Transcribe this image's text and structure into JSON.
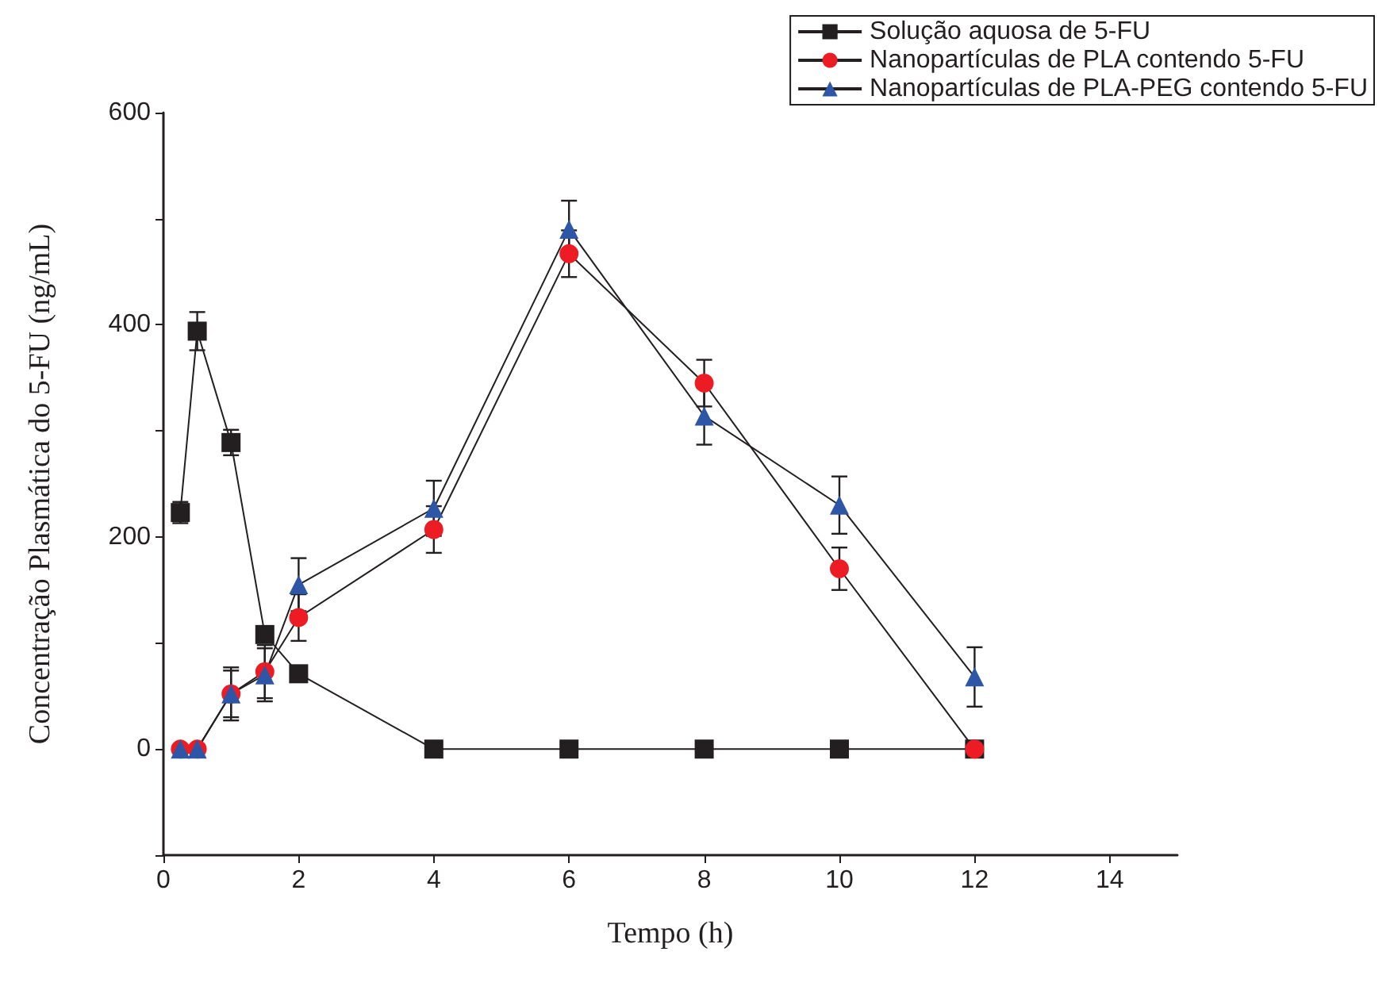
{
  "chart_data": {
    "type": "line",
    "xlabel": "Tempo (h)",
    "ylabel": "Concentração Plasmática do 5-FU (ng/mL)",
    "x": [
      0.25,
      0.5,
      1,
      1.5,
      2,
      4,
      6,
      8,
      10,
      12
    ],
    "series": [
      {
        "name": "Solução aquosa de 5-FU",
        "color": "#231f20",
        "marker": "square",
        "values": [
          223,
          394,
          289,
          108,
          71,
          0,
          0,
          0,
          0,
          0
        ],
        "errors": [
          10,
          18,
          12,
          null,
          null,
          null,
          null,
          null,
          null,
          null
        ]
      },
      {
        "name": "Nanopartículas de PLA contendo 5-FU",
        "color": "#ed1c24",
        "marker": "circle",
        "values": [
          0,
          0,
          52,
          73,
          124,
          207,
          467,
          345,
          170,
          0
        ],
        "errors": [
          null,
          null,
          25,
          25,
          22,
          22,
          22,
          22,
          20,
          null
        ]
      },
      {
        "name": "Nanopartículas de PLA-PEG contendo 5-FU",
        "color": "#2e56a6",
        "marker": "triangle",
        "values": [
          0,
          0,
          52,
          70,
          155,
          227,
          490,
          314,
          230,
          68
        ],
        "errors": [
          null,
          null,
          22,
          25,
          25,
          26,
          27,
          27,
          27,
          28
        ]
      }
    ],
    "xlim": [
      0,
      15
    ],
    "xticks": [
      0,
      2,
      4,
      6,
      8,
      10,
      12,
      14
    ],
    "ylim": [
      -100,
      600
    ],
    "yticks": [
      {
        "value": -100,
        "label": null
      },
      0,
      {
        "value": 100,
        "label": null
      },
      200,
      {
        "value": 300,
        "label": null
      },
      400,
      {
        "value": 500,
        "label": null
      },
      600
    ],
    "legend": "top right",
    "grid": false
  }
}
